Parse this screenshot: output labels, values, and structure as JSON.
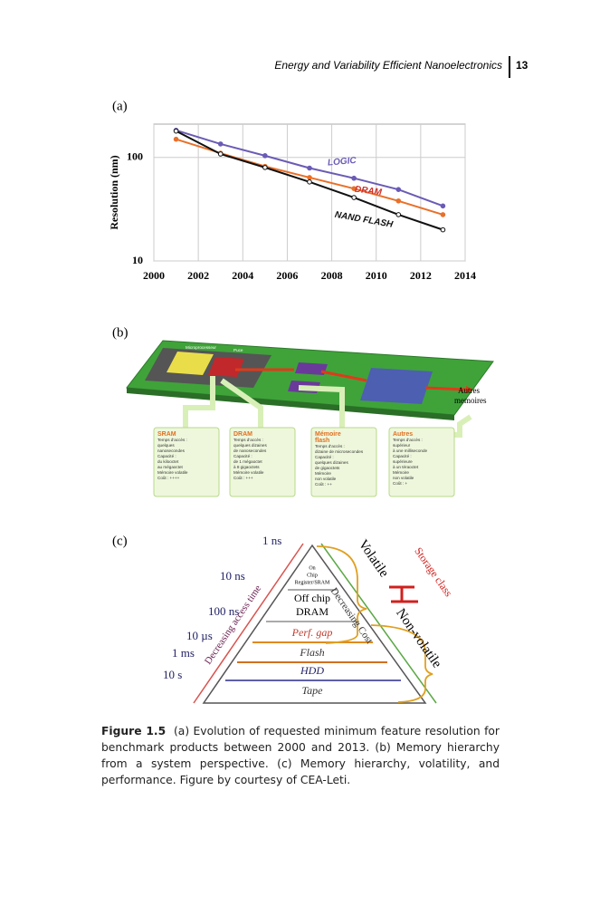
{
  "header": {
    "title": "Energy and Variability Efficient Nanoelectronics",
    "page": "13"
  },
  "panels": [
    "(a)",
    "(b)",
    "(c)"
  ],
  "chart_data": {
    "type": "line",
    "ylabel": "Resolution (nm)",
    "x": [
      2001,
      2003,
      2005,
      2007,
      2009,
      2011,
      2013
    ],
    "xlim": [
      2000,
      2014
    ],
    "xticks": [
      2000,
      2002,
      2004,
      2006,
      2008,
      2010,
      2012,
      2014
    ],
    "ylim": [
      10,
      210
    ],
    "yticks": [
      10,
      100
    ],
    "log_scale": true,
    "grid": true,
    "series": [
      {
        "name": "LOGIC",
        "color": "#6b5bb5",
        "values": [
          183,
          135,
          104,
          79,
          63,
          49,
          34
        ]
      },
      {
        "name": "DRAM",
        "color": "#e8702a",
        "values": [
          150,
          110,
          82,
          64,
          50,
          38,
          28
        ]
      },
      {
        "name": "NAND FLASH",
        "color": "#111111",
        "values": [
          180,
          108,
          80,
          58,
          41,
          28,
          20
        ]
      }
    ]
  },
  "figure_b": {
    "chips": [
      "Microprocesseur",
      "Puce"
    ],
    "side_label": [
      "Autres",
      "memoires"
    ],
    "boxes": [
      {
        "title": [
          "SRAM"
        ],
        "lines": [
          "Temps d'accès :",
          "quelques",
          "nanosecondes",
          "Capacité :",
          "du kilooctet",
          "au mégaoctet",
          "Mémoire volatile",
          "Coût : ++++"
        ]
      },
      {
        "title": [
          "DRAM"
        ],
        "lines": [
          "Temps d'accès :",
          "quelques dizaines",
          "de nanosecondes",
          "Capacité :",
          "de 1 mégaoctet",
          "à 8 gigaoctets",
          "Mémoire volatile",
          "Coût : +++"
        ]
      },
      {
        "title": [
          "Mémoire",
          "flash"
        ],
        "lines": [
          "Temps d'accès :",
          "dizaine de microsecondes",
          "Capacité :",
          "quelques dizaines",
          "de gigaoctets",
          "Mémoire",
          "non volatile",
          "Coût : ++"
        ]
      },
      {
        "title": [
          "Autres"
        ],
        "lines": [
          "Temps d'accès :",
          "supérieur",
          "à une milliseconde",
          "Capacité :",
          "supérieure",
          "à un téraoctet",
          "Mémoire",
          "non volatile",
          "Coût : +"
        ]
      }
    ]
  },
  "figure_c": {
    "times": [
      "1 ns",
      "10 ns",
      "100 ns",
      "10 µs",
      "1 ms",
      "10 s"
    ],
    "layers": {
      "register": [
        "On",
        "Chip",
        "Register/SRAM"
      ],
      "dram": [
        "Off chip",
        "DRAM"
      ],
      "gap": "Perf. gap",
      "flash": "Flash",
      "hdd": "HDD",
      "tape": "Tape"
    },
    "left_axis": "Decreasing access time",
    "right_axis": "Decreasing Cost",
    "volatile": "Volatile",
    "non_volatile": "Non-volatile",
    "storage_class": "Storage class"
  },
  "caption": {
    "label": "Figure 1.5",
    "text": "(a) Evolution of requested minimum feature resolution for benchmark products between 2000 and 2013. (b) Memory hierarchy from a system perspective. (c) Memory hierarchy, volatility, and performance. Figure by courtesy of CEA-Leti."
  }
}
